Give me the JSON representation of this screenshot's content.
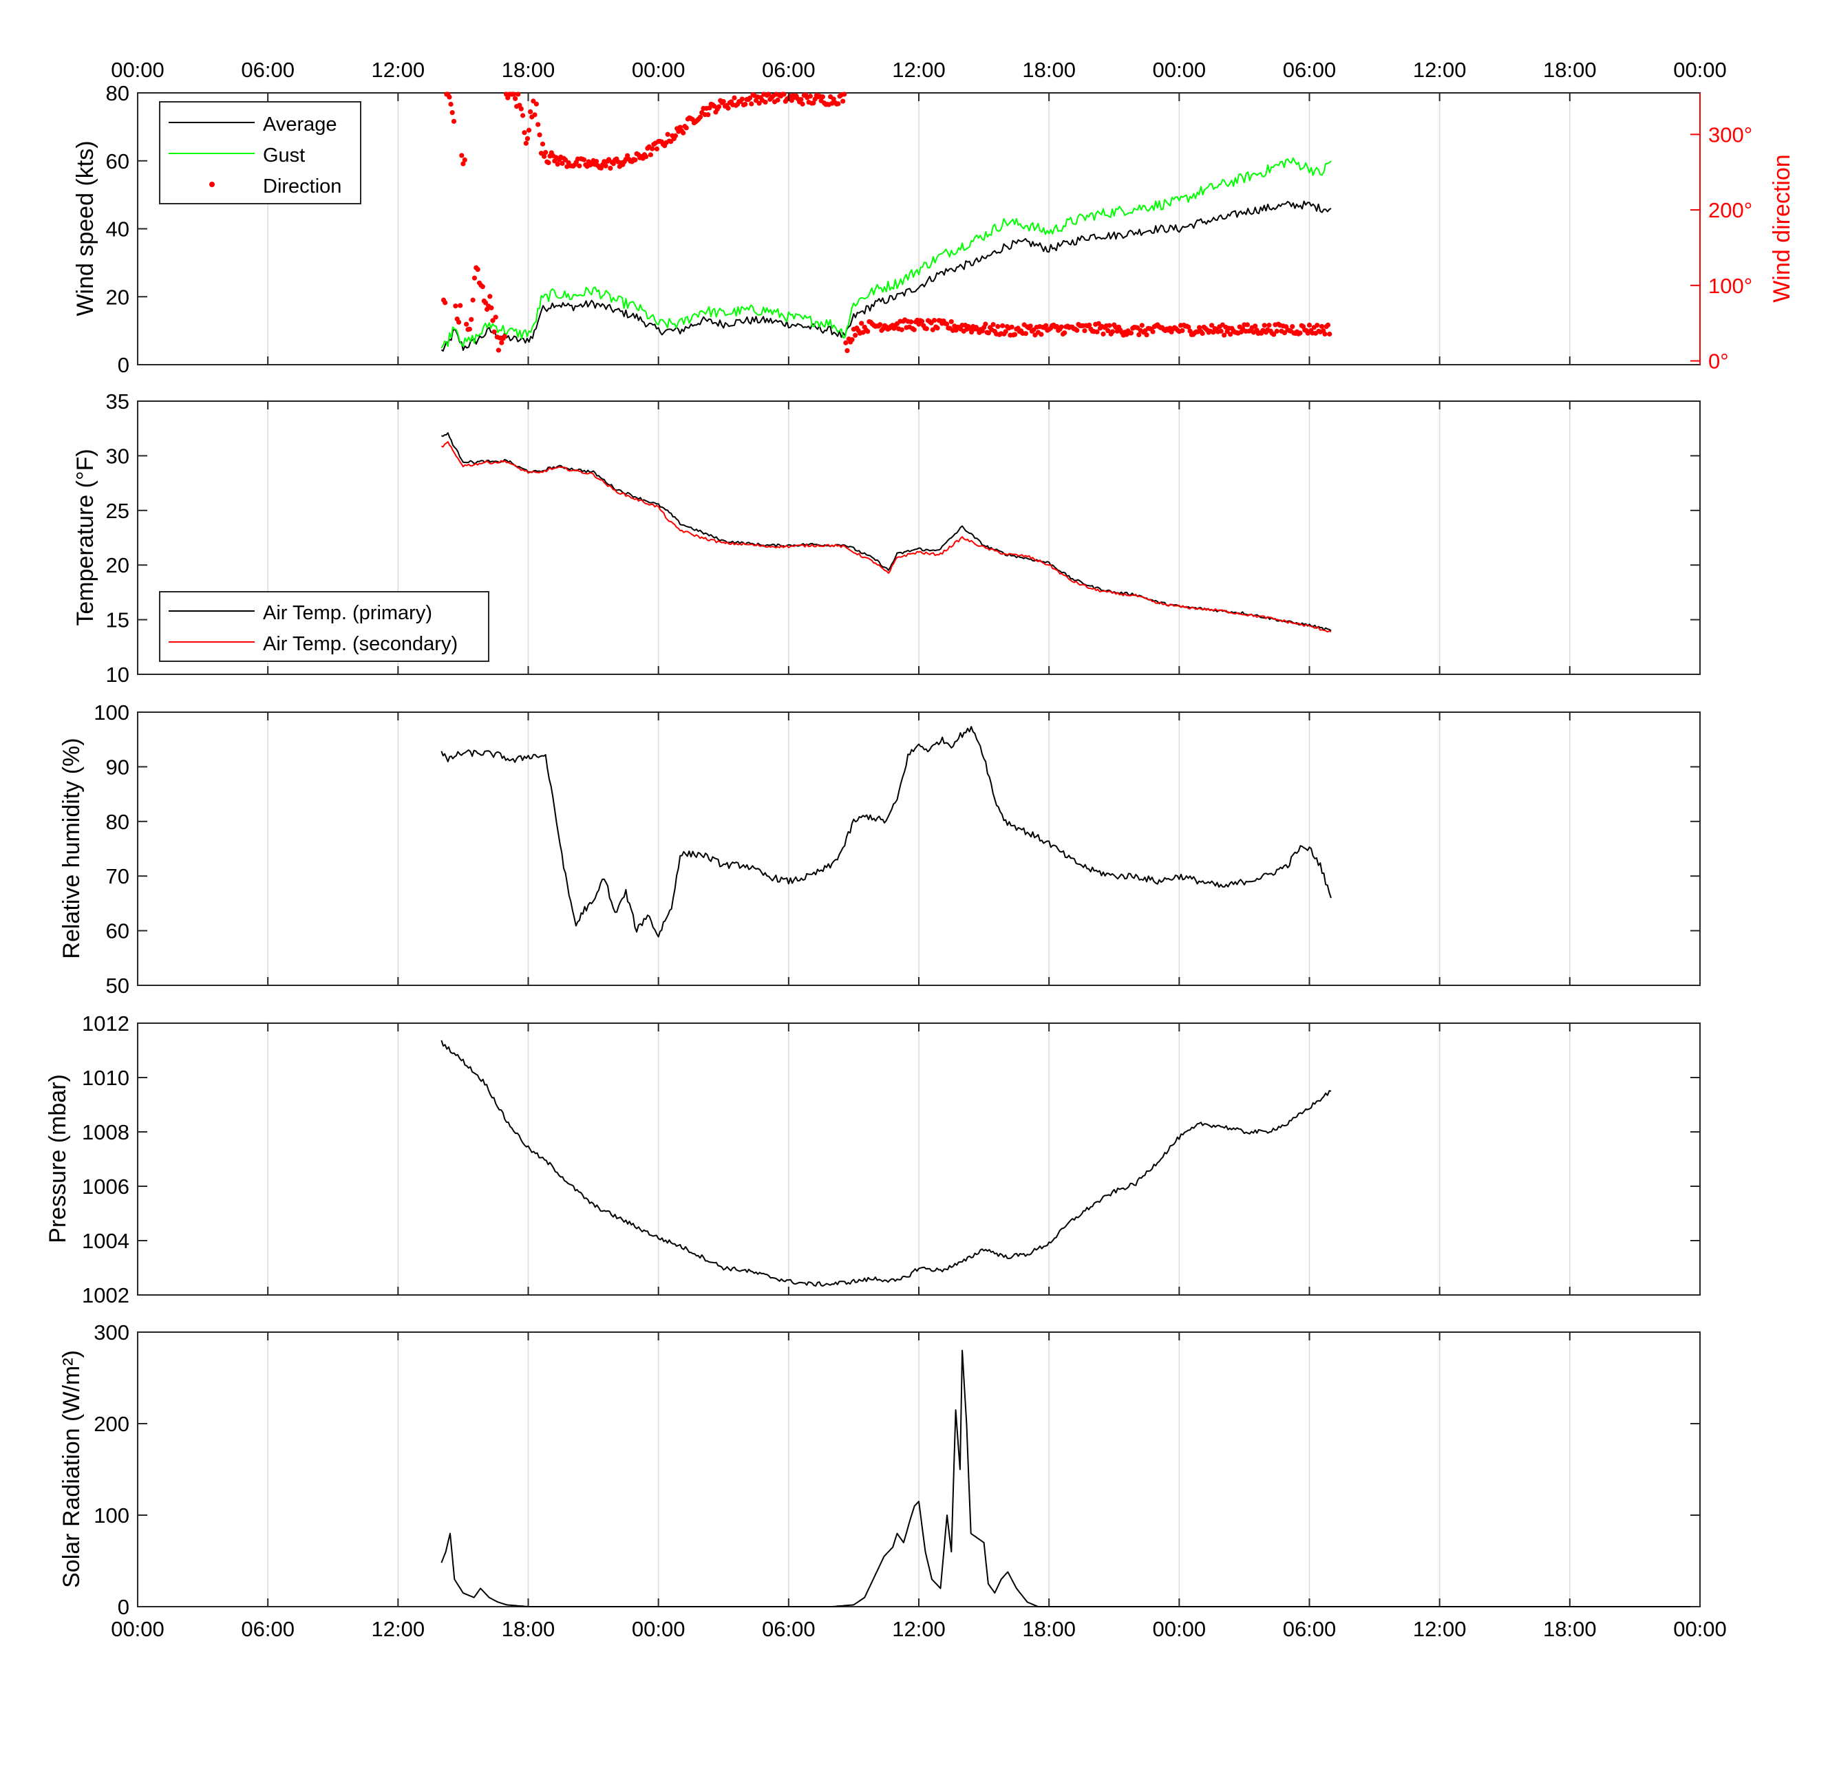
{
  "time_ticks": [
    "00:00",
    "06:00",
    "12:00",
    "18:00",
    "00:00",
    "06:00",
    "12:00",
    "18:00",
    "00:00",
    "06:00",
    "12:00",
    "18:00",
    "00:00"
  ],
  "chart_data": [
    {
      "type": "line",
      "id": "wind",
      "ylabel": "Wind speed (kts)",
      "ylim": [
        0,
        80
      ],
      "yticks": [
        "0",
        "20",
        "40",
        "60",
        "80"
      ],
      "y2label": "Wind direction",
      "y2lim": [
        -5,
        355
      ],
      "y2ticks": [
        "0°",
        "100°",
        "200°",
        "300°"
      ],
      "y2tick_values": [
        0,
        100,
        200,
        300
      ],
      "xlim_hours": [
        0,
        72
      ],
      "grid": "vertical",
      "legend": "top-left",
      "series": [
        {
          "name": "Average",
          "color": "#000000",
          "style": "line",
          "x": [
            14.0,
            14.3,
            14.6,
            15.0,
            15.6,
            16.2,
            17.0,
            17.7,
            18.2,
            18.6,
            19.2,
            20.0,
            21.0,
            22.0,
            23.0,
            24.0,
            25.0,
            26.0,
            27.0,
            28.0,
            29.0,
            30.0,
            31.0,
            32.0,
            32.6,
            33.0,
            34.0,
            35.0,
            36.0,
            37.0,
            38.0,
            39.0,
            40.0,
            41.0,
            42.0,
            43.0,
            44.0,
            45.0,
            46.0,
            47.0,
            48.0,
            49.0,
            50.0,
            51.0,
            52.0,
            53.0,
            54.0,
            54.5,
            55.0
          ],
          "y": [
            4,
            6,
            10,
            5,
            7,
            10,
            8,
            7,
            8,
            16,
            18,
            17,
            18,
            16,
            14,
            10,
            10,
            13,
            12,
            13,
            13,
            12,
            11,
            10,
            8,
            14,
            18,
            20,
            23,
            27,
            29,
            31,
            35,
            36,
            34,
            36,
            38,
            38,
            39,
            40,
            40,
            42,
            43,
            45,
            46,
            47,
            47,
            46,
            46
          ]
        },
        {
          "name": "Gust",
          "color": "#00ff00",
          "style": "line",
          "x": [
            14.0,
            14.3,
            14.6,
            15.0,
            15.6,
            16.2,
            17.0,
            17.7,
            18.2,
            18.6,
            19.2,
            20.0,
            21.0,
            22.0,
            23.0,
            24.0,
            25.0,
            26.0,
            27.0,
            28.0,
            29.0,
            30.0,
            31.0,
            32.0,
            32.6,
            33.0,
            34.0,
            35.0,
            36.0,
            37.0,
            38.0,
            39.0,
            40.0,
            41.0,
            42.0,
            43.0,
            44.0,
            45.0,
            46.0,
            47.0,
            48.0,
            49.0,
            50.0,
            51.0,
            52.0,
            53.0,
            54.0,
            54.5,
            55.0
          ],
          "y": [
            5,
            7,
            12,
            6,
            8,
            12,
            10,
            9,
            10,
            19,
            21,
            20,
            22,
            19,
            17,
            12,
            12,
            16,
            15,
            16,
            16,
            14,
            13,
            12,
            9,
            18,
            22,
            24,
            28,
            32,
            35,
            38,
            42,
            41,
            39,
            42,
            44,
            45,
            46,
            47,
            48,
            51,
            53,
            55,
            57,
            60,
            58,
            56,
            60
          ]
        },
        {
          "name": "Direction",
          "color": "#ff0000",
          "style": "dots",
          "axis": "right",
          "x": [
            14.1,
            14.3,
            14.5,
            14.8,
            15.0,
            15.3,
            15.6,
            15.9,
            16.3,
            16.7,
            17.2,
            17.6,
            17.9,
            18.3,
            18.6,
            19.0,
            19.5,
            20.0,
            21.0,
            22.0,
            23.0,
            24.0,
            25.0,
            26.0,
            27.0,
            28.0,
            29.0,
            30.0,
            31.0,
            32.0,
            32.5,
            32.7,
            33.0,
            33.5,
            34.0,
            36.0,
            38.0,
            40.0,
            42.0,
            44.0,
            46.0,
            48.0,
            50.0,
            52.0,
            54.0,
            55.0
          ],
          "y": [
            80,
            355,
            330,
            60,
            270,
            40,
            120,
            90,
            70,
            20,
            360,
            340,
            300,
            340,
            290,
            270,
            265,
            262,
            260,
            262,
            268,
            285,
            305,
            330,
            340,
            345,
            350,
            348,
            346,
            346,
            348,
            20,
            40,
            45,
            47,
            48,
            45,
            40,
            42,
            43,
            40,
            42,
            41,
            42,
            42,
            42
          ]
        }
      ]
    },
    {
      "type": "line",
      "id": "temp",
      "ylabel": "Temperature (°F)",
      "ylim": [
        10,
        35
      ],
      "yticks": [
        "10",
        "15",
        "20",
        "25",
        "30",
        "35"
      ],
      "xlim_hours": [
        0,
        72
      ],
      "grid": "vertical",
      "legend": "bottom-left",
      "series": [
        {
          "name": "Air Temp. (primary)",
          "color": "#000000",
          "style": "line",
          "x": [
            14.0,
            14.3,
            14.6,
            15.0,
            15.5,
            16.0,
            16.5,
            17.0,
            17.5,
            18.0,
            18.5,
            19.0,
            19.5,
            20.0,
            21.0,
            22.0,
            23.0,
            24.0,
            24.5,
            25.0,
            26.0,
            27.0,
            28.0,
            29.0,
            30.0,
            31.0,
            32.0,
            32.5,
            33.0,
            34.0,
            34.6,
            35.0,
            36.0,
            36.5,
            37.0,
            38.0,
            39.0,
            40.0,
            41.0,
            42.0,
            43.0,
            44.0,
            45.0,
            46.0,
            47.0,
            48.0,
            49.0,
            50.0,
            51.0,
            52.0,
            53.0,
            54.0,
            55.0
          ],
          "y": [
            31.8,
            32.0,
            30.8,
            29.5,
            29.4,
            29.5,
            29.4,
            29.6,
            29.0,
            28.6,
            28.5,
            28.9,
            29.0,
            28.8,
            28.5,
            27.0,
            26.2,
            25.5,
            24.8,
            23.8,
            23.0,
            22.2,
            22.0,
            21.8,
            21.8,
            21.9,
            21.8,
            21.9,
            21.5,
            20.5,
            19.5,
            21.0,
            21.5,
            21.3,
            21.5,
            23.5,
            21.8,
            21.0,
            20.6,
            20.2,
            18.8,
            18.0,
            17.5,
            17.3,
            16.6,
            16.2,
            16.0,
            15.8,
            15.6,
            15.2,
            14.8,
            14.5,
            14.0
          ]
        },
        {
          "name": "Air Temp. (secondary)",
          "color": "#ff0000",
          "style": "line",
          "x": [
            14.0,
            14.3,
            14.6,
            15.0,
            15.5,
            16.0,
            16.5,
            17.0,
            17.5,
            18.0,
            18.5,
            19.0,
            19.5,
            20.0,
            21.0,
            22.0,
            23.0,
            24.0,
            24.5,
            25.0,
            26.0,
            27.0,
            28.0,
            29.0,
            30.0,
            31.0,
            32.0,
            32.5,
            33.0,
            34.0,
            34.6,
            35.0,
            36.0,
            36.5,
            37.0,
            38.0,
            39.0,
            40.0,
            41.0,
            42.0,
            43.0,
            44.0,
            45.0,
            46.0,
            47.0,
            48.0,
            49.0,
            50.0,
            51.0,
            52.0,
            53.0,
            54.0,
            55.0
          ],
          "y": [
            30.8,
            31.2,
            30.2,
            29.1,
            29.2,
            29.4,
            29.4,
            29.5,
            28.9,
            28.5,
            28.4,
            28.8,
            28.9,
            28.7,
            28.3,
            26.8,
            26.0,
            25.3,
            24.0,
            23.2,
            22.5,
            22.0,
            21.9,
            21.7,
            21.7,
            21.8,
            21.8,
            21.7,
            21.2,
            20.2,
            19.2,
            20.7,
            21.2,
            21.0,
            21.0,
            22.5,
            21.6,
            21.0,
            20.8,
            20.0,
            18.6,
            17.8,
            17.4,
            17.2,
            16.5,
            16.2,
            16.0,
            15.8,
            15.5,
            15.2,
            14.8,
            14.4,
            13.9
          ]
        }
      ]
    },
    {
      "type": "line",
      "id": "humidity",
      "ylabel": "Relative humidity (%)",
      "ylim": [
        50,
        100
      ],
      "yticks": [
        "50",
        "60",
        "70",
        "80",
        "90",
        "100"
      ],
      "xlim_hours": [
        0,
        72
      ],
      "grid": "vertical",
      "series": [
        {
          "name": "",
          "color": "#000000",
          "style": "line",
          "x": [
            14.0,
            14.3,
            14.6,
            15.0,
            16.0,
            16.8,
            17.3,
            18.0,
            18.8,
            19.3,
            19.8,
            20.2,
            20.6,
            21.0,
            21.5,
            22.0,
            22.5,
            23.0,
            23.5,
            24.0,
            24.3,
            24.6,
            25.0,
            26.0,
            26.5,
            27.0,
            28.0,
            29.0,
            30.0,
            31.0,
            32.0,
            32.5,
            33.0,
            33.6,
            34.5,
            35.0,
            35.5,
            36.0,
            36.5,
            37.0,
            37.5,
            38.0,
            38.5,
            39.0,
            39.5,
            40.0,
            41.0,
            42.0,
            43.0,
            44.0,
            45.0,
            46.0,
            47.0,
            48.0,
            49.0,
            50.0,
            51.0,
            52.0,
            53.0,
            53.5,
            54.0,
            54.5,
            55.0
          ],
          "y": [
            93,
            91,
            92,
            92.5,
            92.5,
            92,
            91,
            92,
            92,
            80,
            68,
            61,
            64,
            65,
            70,
            63,
            67,
            60,
            63,
            59,
            62,
            64,
            74,
            74,
            73,
            72,
            72,
            70,
            69,
            70,
            72,
            75,
            80,
            81,
            80,
            84,
            92,
            94,
            93,
            95,
            94,
            96,
            97,
            92,
            84,
            80,
            78,
            76,
            73,
            71,
            70,
            70,
            69,
            70,
            69,
            68,
            69,
            70,
            72,
            75,
            75,
            72,
            66
          ]
        }
      ]
    },
    {
      "type": "line",
      "id": "pressure",
      "ylabel": "Pressure (mbar)",
      "ylim": [
        1002,
        1012
      ],
      "yticks": [
        "1002",
        "1004",
        "1006",
        "1008",
        "1010",
        "1012"
      ],
      "xlim_hours": [
        0,
        72
      ],
      "grid": "vertical",
      "series": [
        {
          "name": "",
          "color": "#000000",
          "style": "line",
          "x": [
            14.0,
            15.0,
            16.0,
            17.0,
            18.0,
            19.0,
            20.0,
            21.0,
            22.0,
            23.0,
            24.0,
            25.0,
            26.0,
            27.0,
            28.0,
            29.0,
            30.0,
            31.0,
            32.0,
            33.0,
            34.0,
            35.0,
            35.5,
            36.0,
            37.0,
            38.0,
            39.0,
            40.0,
            41.0,
            42.0,
            43.0,
            44.0,
            45.0,
            46.0,
            47.0,
            48.0,
            49.0,
            50.0,
            51.0,
            52.0,
            53.0,
            54.0,
            55.0
          ],
          "y": [
            1011.3,
            1010.6,
            1009.8,
            1008.4,
            1007.4,
            1006.8,
            1006.0,
            1005.3,
            1004.9,
            1004.5,
            1004.1,
            1003.8,
            1003.4,
            1003.0,
            1002.9,
            1002.7,
            1002.5,
            1002.4,
            1002.4,
            1002.5,
            1002.6,
            1002.5,
            1002.7,
            1003.0,
            1002.9,
            1003.2,
            1003.7,
            1003.4,
            1003.5,
            1003.9,
            1004.7,
            1005.3,
            1005.8,
            1006.1,
            1006.9,
            1007.8,
            1008.3,
            1008.2,
            1008.0,
            1008.0,
            1008.3,
            1008.9,
            1009.5
          ]
        }
      ]
    },
    {
      "type": "line",
      "id": "solar",
      "ylabel": "Solar Radiation (W/m²)",
      "ylim": [
        0,
        300
      ],
      "yticks": [
        "0",
        "100",
        "200",
        "300"
      ],
      "xlim_hours": [
        0,
        72
      ],
      "grid": "vertical",
      "series": [
        {
          "name": "",
          "color": "#000000",
          "style": "line",
          "x": [
            14.0,
            14.2,
            14.4,
            14.6,
            15.0,
            15.5,
            15.8,
            16.2,
            16.6,
            17.0,
            17.5,
            18.0,
            30.0,
            32.0,
            33.0,
            33.5,
            34.0,
            34.4,
            34.8,
            35.0,
            35.3,
            35.6,
            35.8,
            36.0,
            36.3,
            36.6,
            37.0,
            37.3,
            37.5,
            37.7,
            37.9,
            38.0,
            38.2,
            38.4,
            38.7,
            39.0,
            39.2,
            39.5,
            39.8,
            40.1,
            40.5,
            41.0,
            41.5,
            42.0,
            72.0
          ],
          "y": [
            48,
            60,
            80,
            30,
            15,
            10,
            20,
            10,
            5,
            2,
            1,
            0,
            0,
            0,
            2,
            10,
            35,
            55,
            65,
            80,
            70,
            95,
            110,
            115,
            60,
            30,
            20,
            100,
            60,
            215,
            150,
            280,
            200,
            80,
            75,
            70,
            25,
            15,
            30,
            38,
            20,
            5,
            0,
            0,
            0
          ]
        }
      ]
    }
  ],
  "legend_wind": {
    "items": [
      {
        "label": "Average",
        "color": "#000000",
        "kind": "line"
      },
      {
        "label": "Gust",
        "color": "#00ff00",
        "kind": "line"
      },
      {
        "label": "Direction",
        "color": "#ff0000",
        "kind": "dot"
      }
    ]
  },
  "legend_temp": {
    "items": [
      {
        "label": "Air Temp. (primary)",
        "color": "#000000",
        "kind": "line"
      },
      {
        "label": "Air Temp. (secondary)",
        "color": "#ff0000",
        "kind": "line"
      }
    ]
  }
}
